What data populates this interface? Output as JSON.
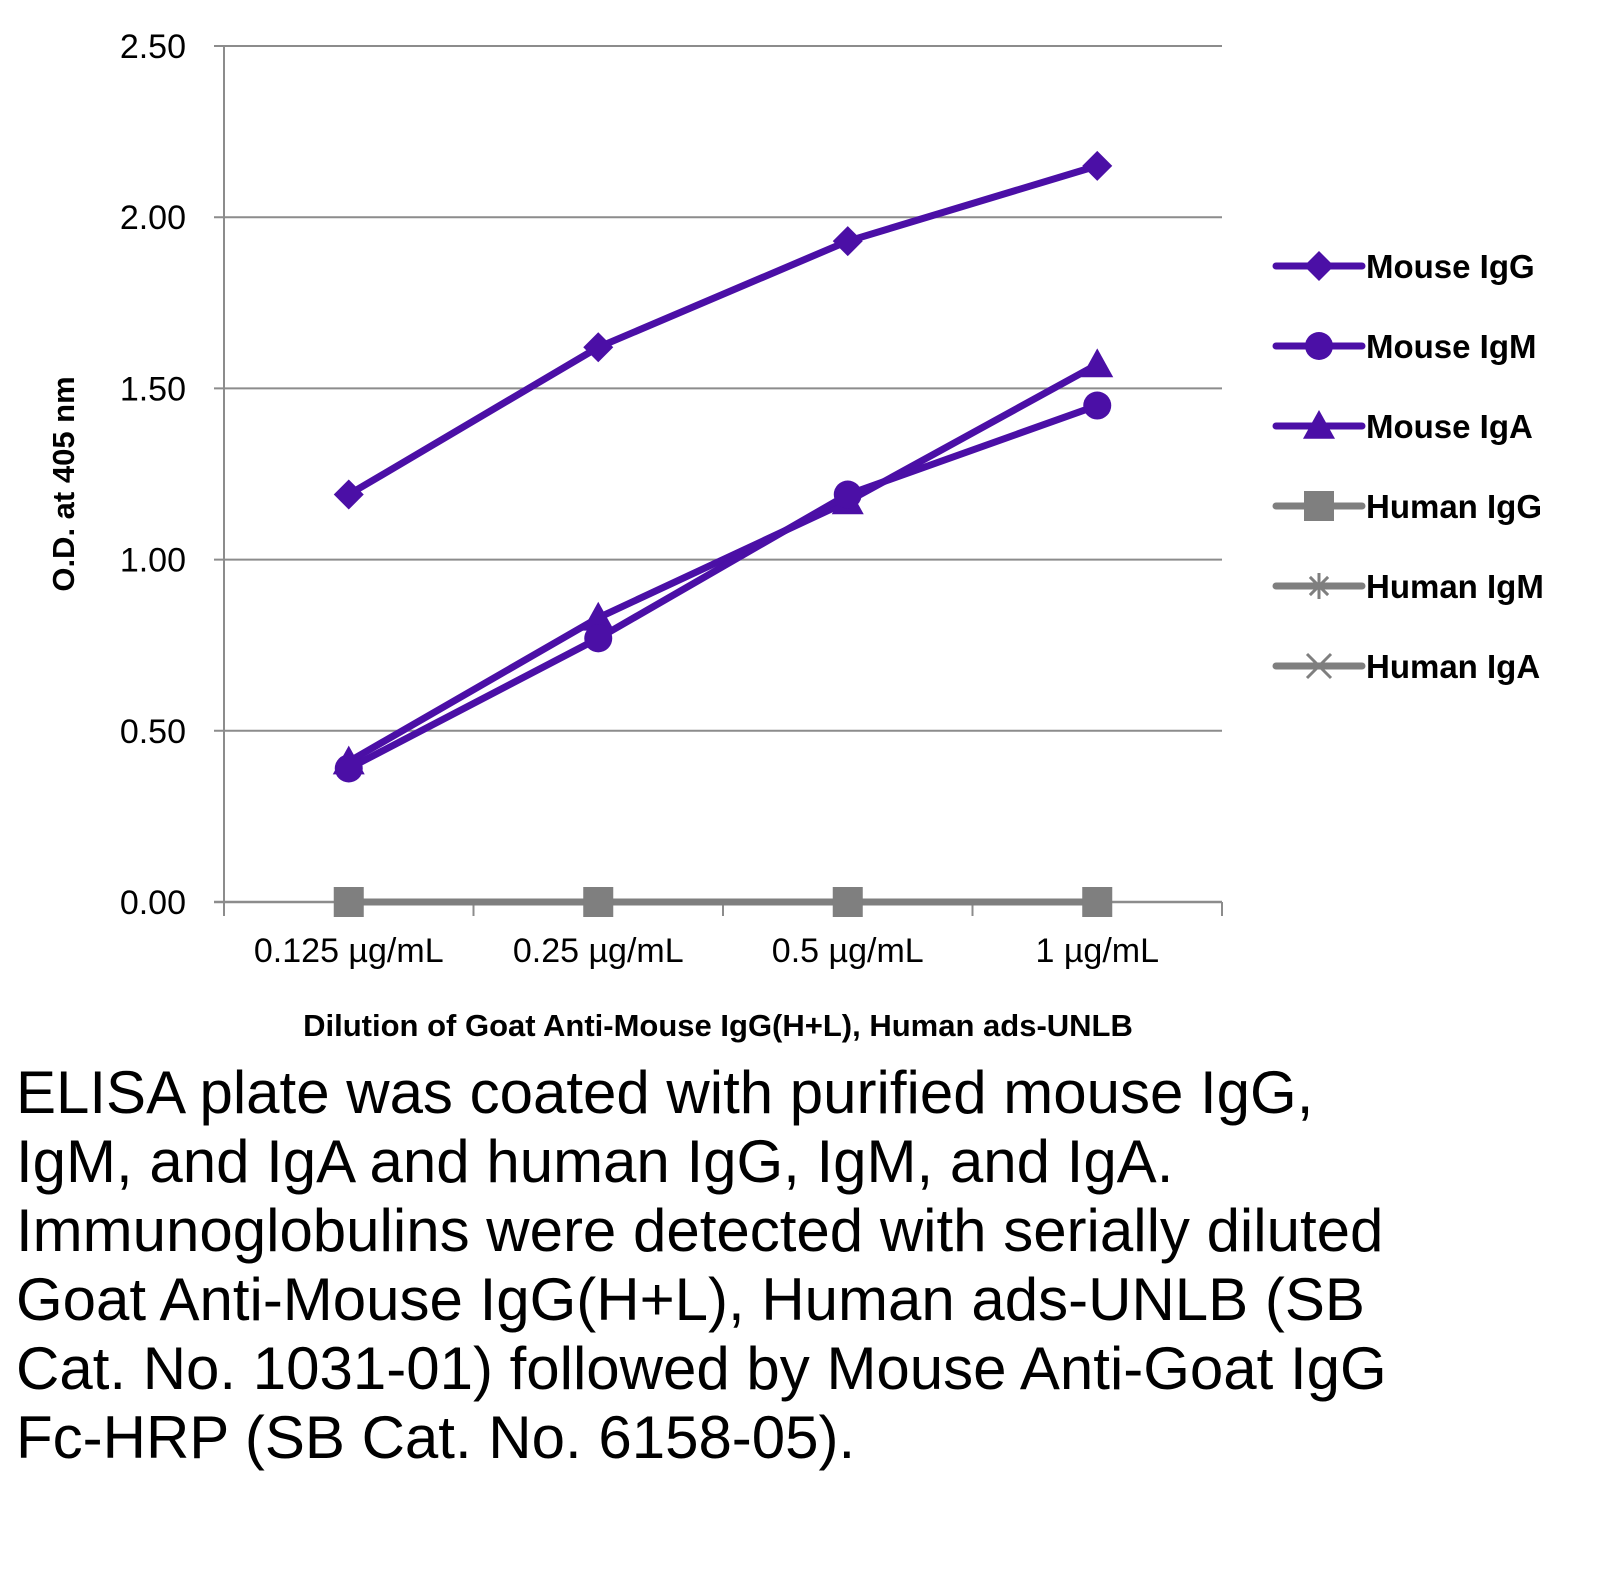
{
  "chart_data": {
    "type": "line",
    "title": "",
    "xlabel": "Dilution of Goat Anti-Mouse IgG(H+L), Human ads-UNLB",
    "ylabel": "O.D. at 405 nm",
    "categories": [
      "0.125 µg/mL",
      "0.25 µg/mL",
      "0.5 µg/mL",
      "1 µg/mL"
    ],
    "ylim": [
      0,
      2.5
    ],
    "yticks": [
      "0.00",
      "0.50",
      "1.00",
      "1.50",
      "2.00",
      "2.50"
    ],
    "grid": true,
    "legend_position": "right",
    "series": [
      {
        "name": "Mouse IgG",
        "values": [
          1.19,
          1.62,
          1.93,
          2.15
        ],
        "color": "#4b0fa6",
        "marker": "diamond"
      },
      {
        "name": "Mouse IgM",
        "values": [
          0.39,
          0.77,
          1.19,
          1.45
        ],
        "color": "#4b0fa6",
        "marker": "circle"
      },
      {
        "name": "Mouse IgA",
        "values": [
          0.41,
          0.83,
          1.17,
          1.57
        ],
        "color": "#4b0fa6",
        "marker": "triangle"
      },
      {
        "name": "Human IgG",
        "values": [
          0.0,
          0.0,
          0.0,
          0.0
        ],
        "color": "#7f7f7f",
        "marker": "square"
      },
      {
        "name": "Human IgM",
        "values": [
          0.0,
          0.0,
          0.0,
          0.0
        ],
        "color": "#7f7f7f",
        "marker": "star"
      },
      {
        "name": "Human IgA",
        "values": [
          0.0,
          0.0,
          0.0,
          0.0
        ],
        "color": "#7f7f7f",
        "marker": "x"
      }
    ]
  },
  "caption": "ELISA plate was coated with purified mouse IgG, IgM, and IgA and human IgG, IgM, and IgA.  Immunoglobulins were detected with serially diluted Goat Anti-Mouse IgG(H+L), Human ads-UNLB (SB Cat. No. 1031-01) followed by Mouse Anti-Goat IgG Fc-HRP (SB Cat. No. 6158-05)."
}
